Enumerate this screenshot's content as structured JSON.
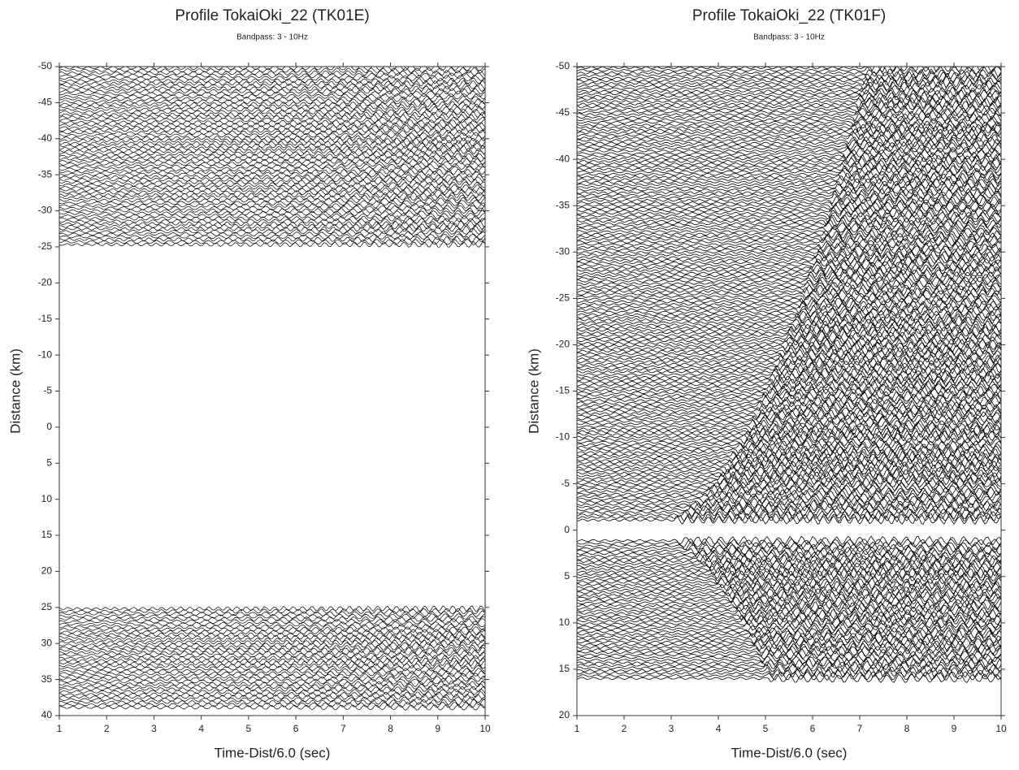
{
  "chart_data": [
    {
      "type": "wiggle",
      "title": "Profile TokaiOki_22 (TK01E)",
      "subtitle": "Bandpass: 3 - 10Hz",
      "x_label": "Time-Dist/6.0 (sec)",
      "y_label": "Distance (km)",
      "xlim": [
        1,
        10
      ],
      "xticks": [
        1,
        2,
        3,
        4,
        5,
        6,
        7,
        8,
        9,
        10
      ],
      "ylim": [
        -50,
        40
      ],
      "yticks": [
        -50,
        -45,
        -40,
        -35,
        -30,
        -25,
        -20,
        -15,
        -10,
        -5,
        0,
        5,
        10,
        15,
        20,
        25,
        30,
        35,
        40
      ],
      "y_inverted": true,
      "color": "#000000",
      "trace_ranges": [
        [
          -50,
          -25
        ],
        [
          25,
          39
        ]
      ]
    },
    {
      "type": "wiggle",
      "title": "Profile TokaiOki_22 (TK01F)",
      "subtitle": "Bandpass: 3 - 10Hz",
      "x_label": "Time-Dist/6.0 (sec)",
      "y_label": "Distance (km)",
      "xlim": [
        1,
        10
      ],
      "xticks": [
        1,
        2,
        3,
        4,
        5,
        6,
        7,
        8,
        9,
        10
      ],
      "ylim": [
        -50,
        20
      ],
      "yticks": [
        -50,
        -45,
        -40,
        -35,
        -30,
        -25,
        -20,
        -15,
        -10,
        -5,
        0,
        5,
        10,
        15,
        20
      ],
      "y_inverted": true,
      "color": "#000000",
      "trace_ranges": [
        [
          -50,
          -1
        ],
        [
          1,
          16
        ]
      ]
    }
  ]
}
